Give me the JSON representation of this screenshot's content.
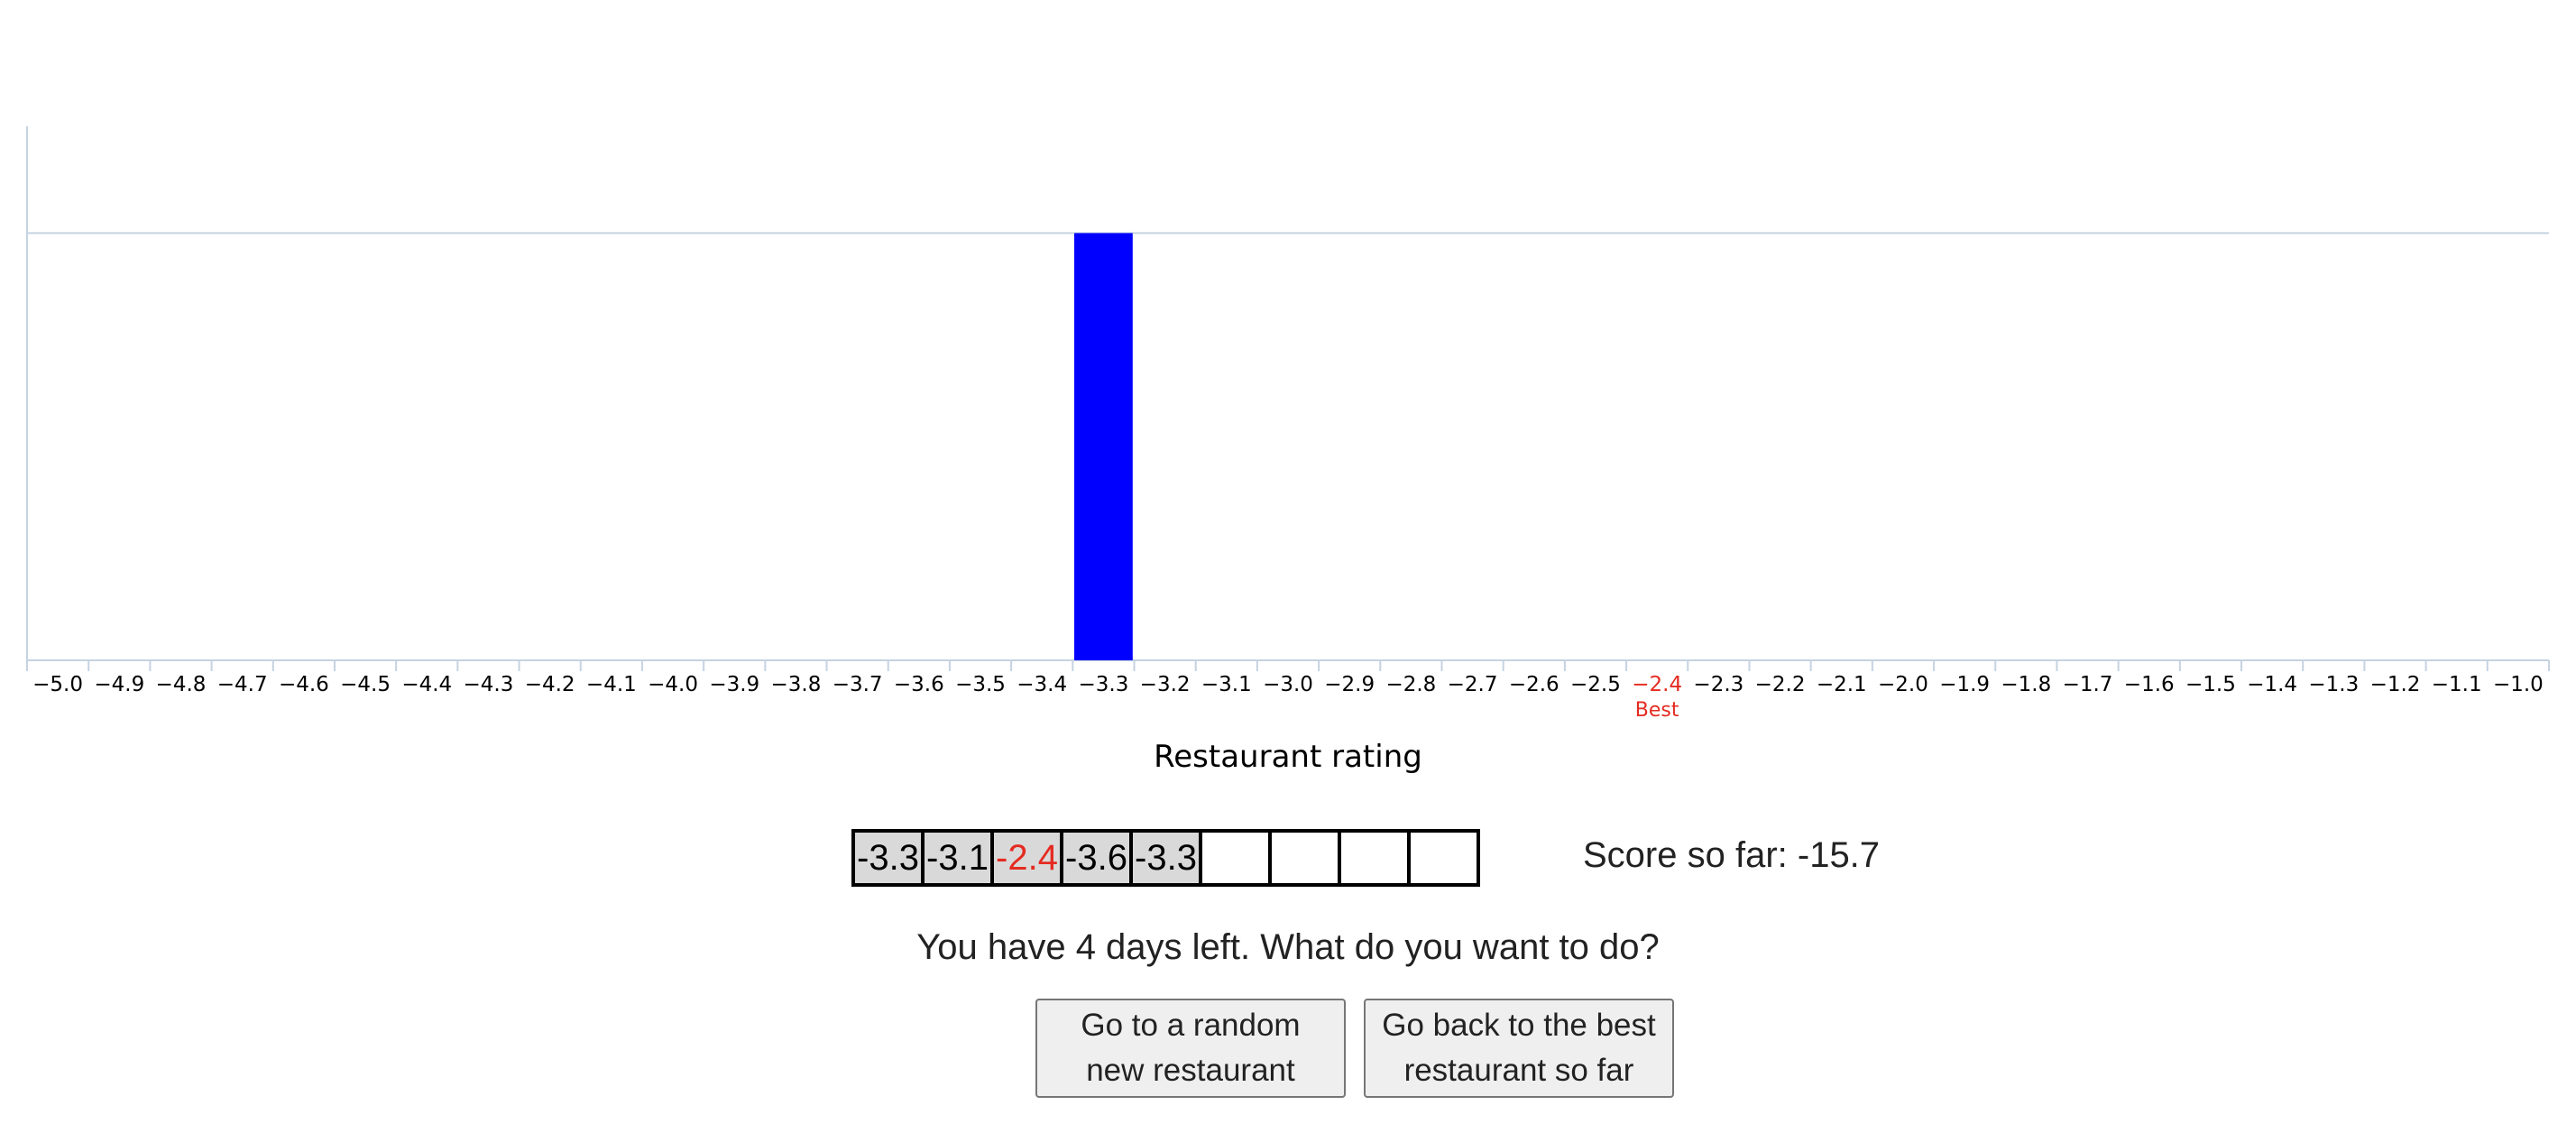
{
  "chart_data": {
    "type": "bar",
    "xlabel": "Restaurant rating",
    "ticks": [
      "−5.0",
      "−4.9",
      "−4.8",
      "−4.7",
      "−4.6",
      "−4.5",
      "−4.4",
      "−4.3",
      "−4.2",
      "−4.1",
      "−4.0",
      "−3.9",
      "−3.8",
      "−3.7",
      "−3.6",
      "−3.5",
      "−3.4",
      "−3.3",
      "−3.2",
      "−3.1",
      "−3.0",
      "−2.9",
      "−2.8",
      "−2.7",
      "−2.6",
      "−2.5",
      "−2.4",
      "−2.3",
      "−2.2",
      "−2.1",
      "−2.0",
      "−1.9",
      "−1.8",
      "−1.7",
      "−1.6",
      "−1.5",
      "−1.4",
      "−1.3",
      "−1.2",
      "−1.1",
      "−1.0"
    ],
    "categories": [
      -5.0,
      -4.9,
      -4.8,
      -4.7,
      -4.6,
      -4.5,
      -4.4,
      -4.3,
      -4.2,
      -4.1,
      -4.0,
      -3.9,
      -3.8,
      -3.7,
      -3.6,
      -3.5,
      -3.4,
      -3.3,
      -3.2,
      -3.1,
      -3.0,
      -2.9,
      -2.8,
      -2.7,
      -2.6,
      -2.5,
      -2.4,
      -2.3,
      -2.2,
      -2.1,
      -2.0,
      -1.9,
      -1.8,
      -1.7,
      -1.6,
      -1.5,
      -1.4,
      -1.3,
      -1.2,
      -1.1,
      -1.0
    ],
    "bars": [
      {
        "x": -3.3,
        "value": 1.0
      }
    ],
    "ylim": [
      0,
      1.25
    ],
    "reference_line": 1.0,
    "best_value": -2.4,
    "best_label": "Best",
    "colors": {
      "bar": "#0000ff",
      "best": "#e52b21",
      "axis": "#c5d3e2"
    }
  },
  "history": {
    "values": [
      "-3.3",
      "-3.1",
      "-2.4",
      "-3.6",
      "-3.3",
      "",
      "",
      "",
      ""
    ],
    "best_index": 2
  },
  "score": {
    "label": "Score so far: -15.7"
  },
  "prompt": {
    "text": "You have 4 days left. What do you want to do?"
  },
  "buttons": {
    "random_line1": "Go to a random",
    "random_line2": "new restaurant",
    "best_line1": "Go back to the best",
    "best_line2": "restaurant so far"
  }
}
